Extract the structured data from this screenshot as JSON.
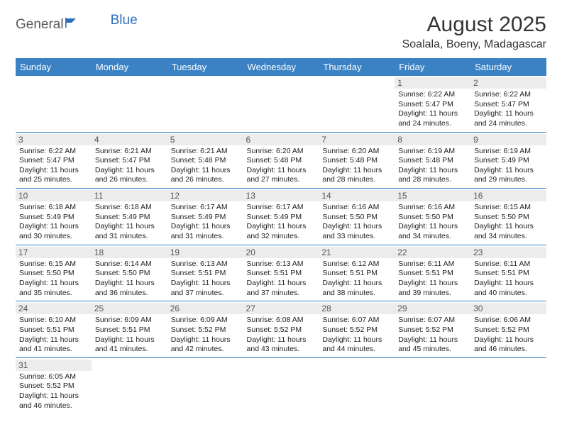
{
  "logo": {
    "text1": "General",
    "text2": "Blue"
  },
  "title": "August 2025",
  "location": "Soalala, Boeny, Madagascar",
  "colors": {
    "header_bg": "#3a82c4",
    "header_fg": "#ffffff",
    "daynum_bg": "#ececec",
    "border": "#3a82c4",
    "logo_gray": "#5a5a5a",
    "logo_blue": "#2a6ebb"
  },
  "weekdays": [
    "Sunday",
    "Monday",
    "Tuesday",
    "Wednesday",
    "Thursday",
    "Friday",
    "Saturday"
  ],
  "weeks": [
    [
      null,
      null,
      null,
      null,
      null,
      {
        "n": "1",
        "sr": "6:22 AM",
        "ss": "5:47 PM",
        "dl": "11 hours and 24 minutes."
      },
      {
        "n": "2",
        "sr": "6:22 AM",
        "ss": "5:47 PM",
        "dl": "11 hours and 24 minutes."
      }
    ],
    [
      {
        "n": "3",
        "sr": "6:22 AM",
        "ss": "5:47 PM",
        "dl": "11 hours and 25 minutes."
      },
      {
        "n": "4",
        "sr": "6:21 AM",
        "ss": "5:47 PM",
        "dl": "11 hours and 26 minutes."
      },
      {
        "n": "5",
        "sr": "6:21 AM",
        "ss": "5:48 PM",
        "dl": "11 hours and 26 minutes."
      },
      {
        "n": "6",
        "sr": "6:20 AM",
        "ss": "5:48 PM",
        "dl": "11 hours and 27 minutes."
      },
      {
        "n": "7",
        "sr": "6:20 AM",
        "ss": "5:48 PM",
        "dl": "11 hours and 28 minutes."
      },
      {
        "n": "8",
        "sr": "6:19 AM",
        "ss": "5:48 PM",
        "dl": "11 hours and 28 minutes."
      },
      {
        "n": "9",
        "sr": "6:19 AM",
        "ss": "5:49 PM",
        "dl": "11 hours and 29 minutes."
      }
    ],
    [
      {
        "n": "10",
        "sr": "6:18 AM",
        "ss": "5:49 PM",
        "dl": "11 hours and 30 minutes."
      },
      {
        "n": "11",
        "sr": "6:18 AM",
        "ss": "5:49 PM",
        "dl": "11 hours and 31 minutes."
      },
      {
        "n": "12",
        "sr": "6:17 AM",
        "ss": "5:49 PM",
        "dl": "11 hours and 31 minutes."
      },
      {
        "n": "13",
        "sr": "6:17 AM",
        "ss": "5:49 PM",
        "dl": "11 hours and 32 minutes."
      },
      {
        "n": "14",
        "sr": "6:16 AM",
        "ss": "5:50 PM",
        "dl": "11 hours and 33 minutes."
      },
      {
        "n": "15",
        "sr": "6:16 AM",
        "ss": "5:50 PM",
        "dl": "11 hours and 34 minutes."
      },
      {
        "n": "16",
        "sr": "6:15 AM",
        "ss": "5:50 PM",
        "dl": "11 hours and 34 minutes."
      }
    ],
    [
      {
        "n": "17",
        "sr": "6:15 AM",
        "ss": "5:50 PM",
        "dl": "11 hours and 35 minutes."
      },
      {
        "n": "18",
        "sr": "6:14 AM",
        "ss": "5:50 PM",
        "dl": "11 hours and 36 minutes."
      },
      {
        "n": "19",
        "sr": "6:13 AM",
        "ss": "5:51 PM",
        "dl": "11 hours and 37 minutes."
      },
      {
        "n": "20",
        "sr": "6:13 AM",
        "ss": "5:51 PM",
        "dl": "11 hours and 37 minutes."
      },
      {
        "n": "21",
        "sr": "6:12 AM",
        "ss": "5:51 PM",
        "dl": "11 hours and 38 minutes."
      },
      {
        "n": "22",
        "sr": "6:11 AM",
        "ss": "5:51 PM",
        "dl": "11 hours and 39 minutes."
      },
      {
        "n": "23",
        "sr": "6:11 AM",
        "ss": "5:51 PM",
        "dl": "11 hours and 40 minutes."
      }
    ],
    [
      {
        "n": "24",
        "sr": "6:10 AM",
        "ss": "5:51 PM",
        "dl": "11 hours and 41 minutes."
      },
      {
        "n": "25",
        "sr": "6:09 AM",
        "ss": "5:51 PM",
        "dl": "11 hours and 41 minutes."
      },
      {
        "n": "26",
        "sr": "6:09 AM",
        "ss": "5:52 PM",
        "dl": "11 hours and 42 minutes."
      },
      {
        "n": "27",
        "sr": "6:08 AM",
        "ss": "5:52 PM",
        "dl": "11 hours and 43 minutes."
      },
      {
        "n": "28",
        "sr": "6:07 AM",
        "ss": "5:52 PM",
        "dl": "11 hours and 44 minutes."
      },
      {
        "n": "29",
        "sr": "6:07 AM",
        "ss": "5:52 PM",
        "dl": "11 hours and 45 minutes."
      },
      {
        "n": "30",
        "sr": "6:06 AM",
        "ss": "5:52 PM",
        "dl": "11 hours and 46 minutes."
      }
    ],
    [
      {
        "n": "31",
        "sr": "6:05 AM",
        "ss": "5:52 PM",
        "dl": "11 hours and 46 minutes."
      },
      null,
      null,
      null,
      null,
      null,
      null
    ]
  ],
  "labels": {
    "sunrise": "Sunrise: ",
    "sunset": "Sunset: ",
    "daylight": "Daylight: "
  }
}
